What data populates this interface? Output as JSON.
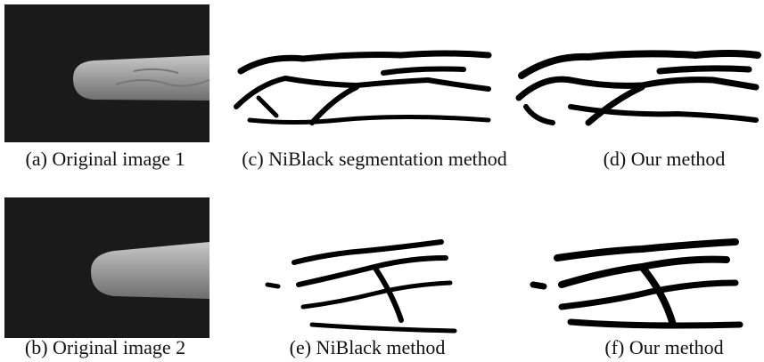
{
  "figure": {
    "captions": [
      "(a) Original image 1",
      "(c) NiBlack segmentation method",
      "(d) Our method",
      "(b) Original image 2",
      "(e) NiBlack method",
      "(f) Our method"
    ]
  }
}
